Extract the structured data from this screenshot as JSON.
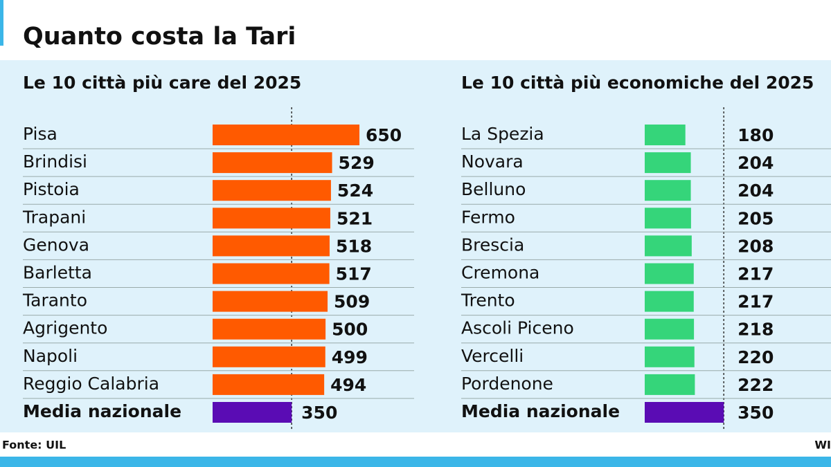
{
  "title": "Quanto costa la Tari",
  "source": "Fonte: UIL",
  "brand": "WI",
  "chart_data": [
    {
      "type": "bar",
      "title": "Le 10 città più care del 2025",
      "categories": [
        "Pisa",
        "Brindisi",
        "Pistoia",
        "Trapani",
        "Genova",
        "Barletta",
        "Taranto",
        "Agrigento",
        "Napoli",
        "Reggio Calabria",
        "Media nazionale"
      ],
      "values": [
        650,
        529,
        524,
        521,
        518,
        517,
        509,
        500,
        499,
        494,
        350
      ],
      "colors": [
        "#ff5a00",
        "#ff5a00",
        "#ff5a00",
        "#ff5a00",
        "#ff5a00",
        "#ff5a00",
        "#ff5a00",
        "#ff5a00",
        "#ff5a00",
        "#ff5a00",
        "#5a0cb4"
      ]
    },
    {
      "type": "bar",
      "title": "Le 10 città più economiche del 2025",
      "categories": [
        "La Spezia",
        "Novara",
        "Belluno",
        "Fermo",
        "Brescia",
        "Cremona",
        "Trento",
        "Ascoli Piceno",
        "Vercelli",
        "Pordenone",
        "Media nazionale"
      ],
      "values": [
        180,
        204,
        204,
        205,
        208,
        217,
        217,
        218,
        220,
        222,
        350
      ],
      "colors": [
        "#35d57a",
        "#35d57a",
        "#35d57a",
        "#35d57a",
        "#35d57a",
        "#35d57a",
        "#35d57a",
        "#35d57a",
        "#35d57a",
        "#35d57a",
        "#5a0cb4"
      ]
    }
  ]
}
